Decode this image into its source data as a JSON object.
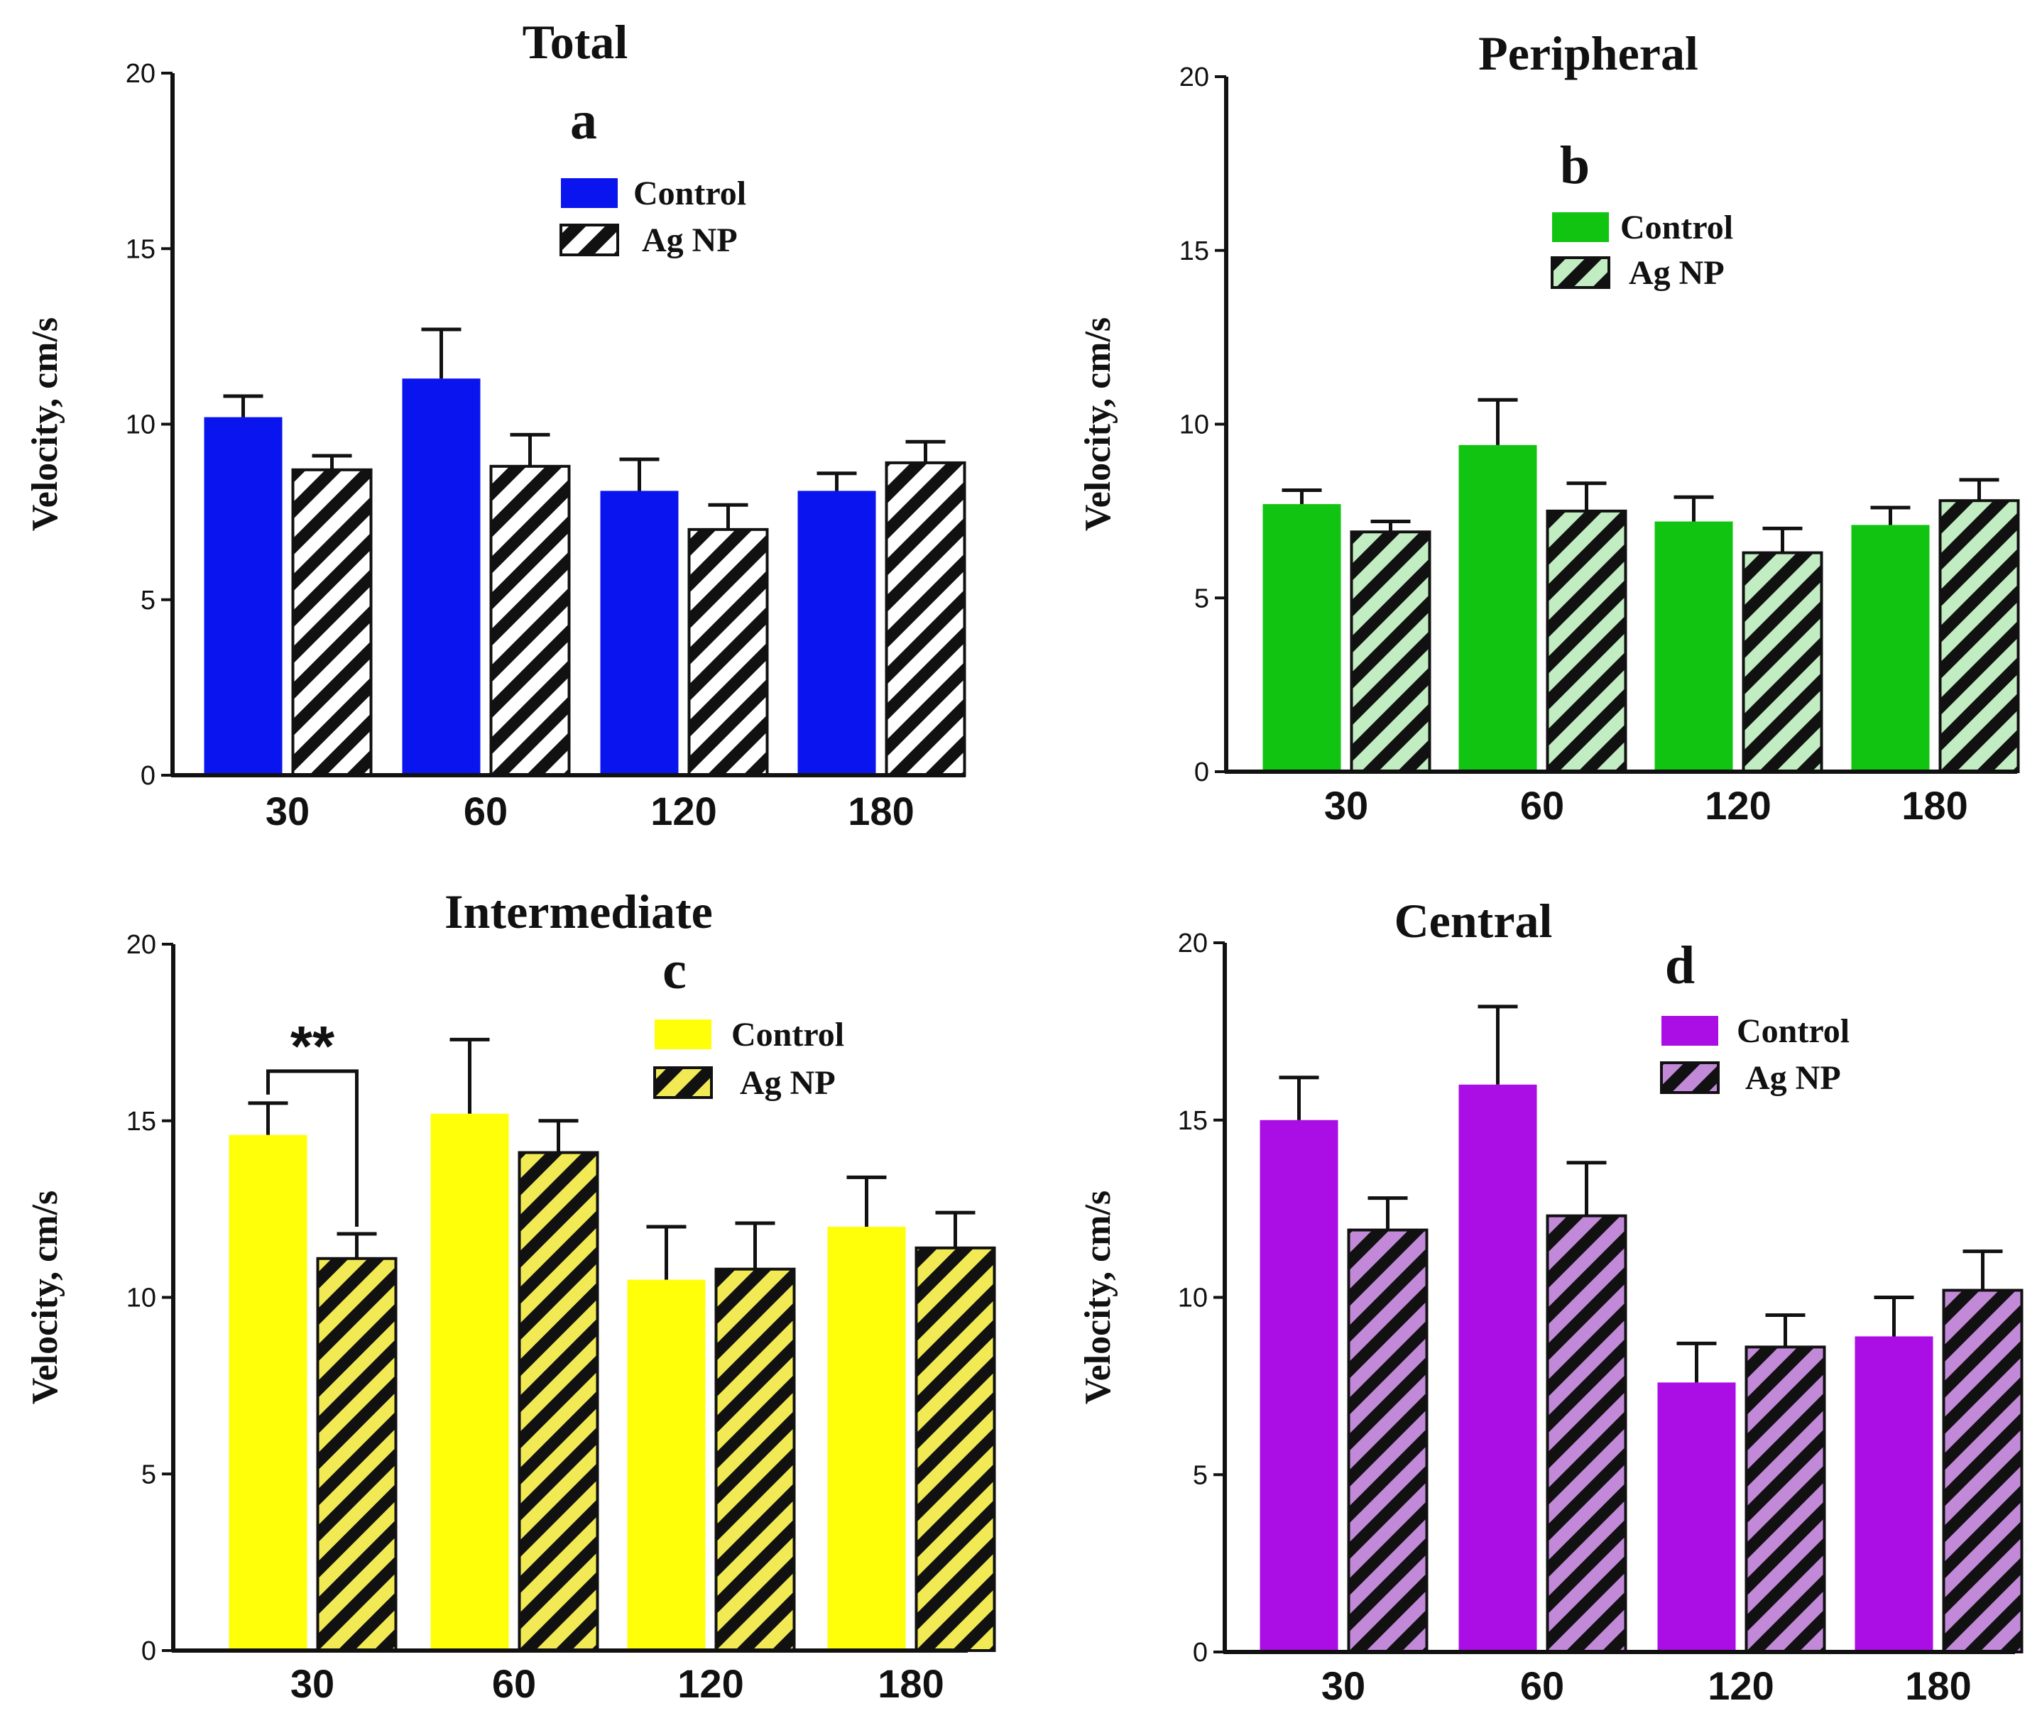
{
  "chart_data": [
    {
      "id": "a",
      "type": "bar",
      "title": "Total",
      "panel_label": "a",
      "ylabel": "Velocity, cm/s",
      "xlabel": "",
      "categories": [
        "30",
        "60",
        "120",
        "180"
      ],
      "ylim": [
        0,
        20
      ],
      "yticks": [
        "0",
        "5",
        "10",
        "15",
        "20"
      ],
      "legend_position": "top-center",
      "series": [
        {
          "name": "Control",
          "pattern": "solid",
          "values": [
            10.2,
            11.3,
            8.1,
            8.1
          ],
          "errors": [
            0.6,
            1.4,
            0.9,
            0.5
          ]
        },
        {
          "name": "Ag NP",
          "pattern": "hatched",
          "values": [
            8.7,
            8.8,
            7.0,
            8.9
          ],
          "errors": [
            0.4,
            0.9,
            0.7,
            0.6
          ]
        }
      ],
      "colors": {
        "control": "#0a14ef",
        "hatch_bg": "#ffffff",
        "hatch_line": "#111111"
      },
      "annotations": []
    },
    {
      "id": "b",
      "type": "bar",
      "title": "Peripheral",
      "panel_label": "b",
      "ylabel": "Velocity, cm/s",
      "xlabel": "",
      "categories": [
        "30",
        "60",
        "120",
        "180"
      ],
      "ylim": [
        0,
        20
      ],
      "yticks": [
        "0",
        "5",
        "10",
        "15",
        "20"
      ],
      "legend_position": "top-center",
      "series": [
        {
          "name": "Control",
          "pattern": "solid",
          "values": [
            7.7,
            9.4,
            7.2,
            7.1
          ],
          "errors": [
            0.4,
            1.3,
            0.7,
            0.5
          ]
        },
        {
          "name": "Ag NP",
          "pattern": "hatched",
          "values": [
            6.9,
            7.5,
            6.3,
            7.8
          ],
          "errors": [
            0.3,
            0.8,
            0.7,
            0.6
          ]
        }
      ],
      "colors": {
        "control": "#11c411",
        "hatch_bg": "#c2ecc2",
        "hatch_line": "#111111"
      },
      "annotations": []
    },
    {
      "id": "c",
      "type": "bar",
      "title": "Intermediate",
      "panel_label": "c",
      "ylabel": "Velocity, cm/s",
      "xlabel": "",
      "categories": [
        "30",
        "60",
        "120",
        "180"
      ],
      "ylim": [
        0,
        20
      ],
      "yticks": [
        "0",
        "5",
        "10",
        "15",
        "20"
      ],
      "legend_position": "top-right",
      "series": [
        {
          "name": "Control",
          "pattern": "solid",
          "values": [
            14.6,
            15.2,
            10.5,
            12.0
          ],
          "errors": [
            0.9,
            2.1,
            1.5,
            1.4
          ]
        },
        {
          "name": "Ag NP",
          "pattern": "hatched",
          "values": [
            11.1,
            14.1,
            10.8,
            11.4
          ],
          "errors": [
            0.7,
            0.9,
            1.3,
            1.0
          ]
        }
      ],
      "colors": {
        "control": "#ffff0a",
        "hatch_bg": "#f1ea55",
        "hatch_line": "#111111"
      },
      "annotations": [
        {
          "text": "**",
          "between_category": "30"
        }
      ]
    },
    {
      "id": "d",
      "type": "bar",
      "title": "Central",
      "panel_label": "d",
      "ylabel": "Velocity, cm/s",
      "xlabel": "",
      "categories": [
        "30",
        "60",
        "120",
        "180"
      ],
      "ylim": [
        0,
        20
      ],
      "yticks": [
        "0",
        "5",
        "10",
        "15",
        "20"
      ],
      "legend_position": "top-center",
      "series": [
        {
          "name": "Control",
          "pattern": "solid",
          "values": [
            15.0,
            16.0,
            7.6,
            8.9
          ],
          "errors": [
            1.2,
            2.2,
            1.1,
            1.1
          ]
        },
        {
          "name": "Ag NP",
          "pattern": "hatched",
          "values": [
            11.9,
            12.3,
            8.6,
            10.2
          ],
          "errors": [
            0.9,
            1.5,
            0.9,
            1.1
          ]
        }
      ],
      "colors": {
        "control": "#aa0ee4",
        "hatch_bg": "#c389d9",
        "hatch_line": "#111111"
      },
      "annotations": []
    }
  ]
}
